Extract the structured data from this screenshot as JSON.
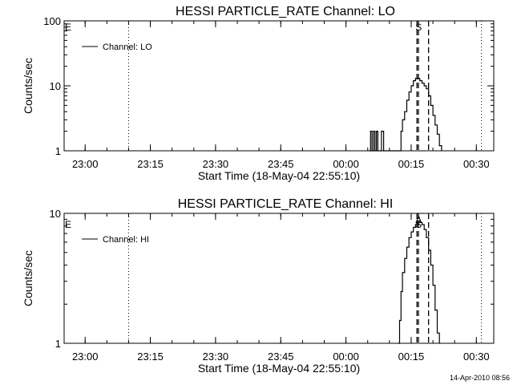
{
  "chart_data": [
    {
      "type": "line",
      "title": "HESSI PARTICLE_RATE Channel: LO",
      "xlabel": "Start Time (18-May-04 22:55:10)",
      "ylabel": "Counts/sec",
      "y_scale": "log",
      "ylim": [
        1,
        100
      ],
      "xlim": [
        "22:55:10",
        "00:34:00"
      ],
      "x_ticks": [
        "23:00",
        "23:15",
        "23:30",
        "23:45",
        "00:00",
        "00:15",
        "00:30"
      ],
      "y_ticks": [
        "1",
        "10",
        "100"
      ],
      "legend": {
        "entries": [
          "Channel: LO"
        ],
        "placement": "top-left"
      },
      "event_markers": [
        "E",
        "S"
      ],
      "vertical_lines": {
        "dotted": [
          "23:10:00",
          "00:31:10"
        ],
        "dashed": [
          "00:16:20",
          "00:16:40",
          "00:19:00"
        ]
      },
      "series": [
        {
          "name": "Channel: LO",
          "x": [
            "00:05:20",
            "00:05:40",
            "00:06:00",
            "00:06:20",
            "00:06:40",
            "00:07:00",
            "00:07:20",
            "00:08:00",
            "00:08:10",
            "00:08:30",
            "00:08:40",
            "00:12:20",
            "00:12:40",
            "00:13:00",
            "00:13:30",
            "00:14:00",
            "00:14:30",
            "00:15:00",
            "00:15:30",
            "00:16:00",
            "00:16:30",
            "00:17:00",
            "00:17:30",
            "00:18:00",
            "00:18:30",
            "00:19:00",
            "00:19:30",
            "00:20:00",
            "00:20:30",
            "00:21:00",
            "00:21:30",
            "00:22:00"
          ],
          "values": [
            1,
            2,
            1,
            2,
            1,
            2,
            1,
            1,
            2,
            2,
            1,
            1,
            2,
            3,
            4,
            6,
            8,
            10,
            12,
            13,
            13,
            12,
            11,
            10,
            9,
            7,
            5,
            3.5,
            2.5,
            1.8,
            1.2,
            1
          ]
        }
      ]
    },
    {
      "type": "line",
      "title": "HESSI PARTICLE_RATE Channel: HI",
      "xlabel": "Start Time (18-May-04 22:55:10)",
      "ylabel": "Counts/sec",
      "y_scale": "log",
      "ylim": [
        1,
        10
      ],
      "xlim": [
        "22:55:10",
        "00:34:00"
      ],
      "x_ticks": [
        "23:00",
        "23:15",
        "23:30",
        "23:45",
        "00:00",
        "00:15",
        "00:30"
      ],
      "y_ticks": [
        "1",
        "10"
      ],
      "legend": {
        "entries": [
          "Channel: HI"
        ],
        "placement": "top-left"
      },
      "event_markers": [
        "E",
        "A",
        "S"
      ],
      "vertical_lines": {
        "dotted": [
          "23:10:00",
          "00:31:10"
        ],
        "dashed": [
          "00:16:20",
          "00:16:40",
          "00:19:00"
        ]
      },
      "series": [
        {
          "name": "Channel: HI",
          "x": [
            "00:12:00",
            "00:12:20",
            "00:12:40",
            "00:13:00",
            "00:13:30",
            "00:14:00",
            "00:14:30",
            "00:15:00",
            "00:15:30",
            "00:16:00",
            "00:16:30",
            "00:17:00",
            "00:17:30",
            "00:18:00",
            "00:18:30",
            "00:19:00",
            "00:19:30",
            "00:20:00",
            "00:20:30",
            "00:21:00",
            "00:21:30"
          ],
          "values": [
            1,
            1.5,
            2.5,
            3.5,
            4.5,
            5.5,
            6.5,
            7.2,
            7.8,
            8.2,
            8.5,
            8.5,
            8.2,
            7.5,
            6.5,
            5.2,
            4,
            2.8,
            1.8,
            1.2,
            1
          ]
        }
      ]
    }
  ],
  "footer": {
    "timestamp": "14-Apr-2010 08:56"
  }
}
